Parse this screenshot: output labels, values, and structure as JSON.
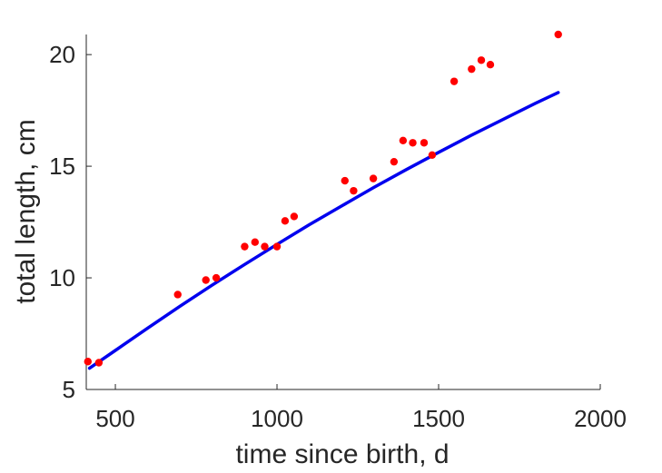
{
  "chart_data": {
    "type": "scatter",
    "xlabel": "time since birth, d",
    "ylabel": "total length, cm",
    "xlim": [
      410,
      2000
    ],
    "ylim": [
      5,
      20.9
    ],
    "xticks": [
      500,
      1000,
      1500,
      2000
    ],
    "yticks": [
      5,
      10,
      15,
      20
    ],
    "grid": false,
    "series": [
      {
        "kind": "points",
        "color": "#ff0000",
        "points": [
          [
            415,
            6.25
          ],
          [
            449,
            6.2
          ],
          [
            693,
            9.25
          ],
          [
            780,
            9.9
          ],
          [
            812,
            10.0
          ],
          [
            900,
            11.4
          ],
          [
            932,
            11.6
          ],
          [
            962,
            11.4
          ],
          [
            1000,
            11.4
          ],
          [
            1025,
            12.55
          ],
          [
            1053,
            12.75
          ],
          [
            1210,
            14.35
          ],
          [
            1237,
            13.9
          ],
          [
            1298,
            14.45
          ],
          [
            1362,
            15.2
          ],
          [
            1390,
            16.15
          ],
          [
            1420,
            16.05
          ],
          [
            1455,
            16.05
          ],
          [
            1480,
            15.5
          ],
          [
            1548,
            18.8
          ],
          [
            1602,
            19.35
          ],
          [
            1632,
            19.75
          ],
          [
            1660,
            19.55
          ],
          [
            1870,
            20.9
          ]
        ]
      },
      {
        "kind": "fit-line",
        "color": "#0000ee",
        "points": [
          [
            420,
            5.95
          ],
          [
            500,
            6.75
          ],
          [
            600,
            7.75
          ],
          [
            700,
            8.73
          ],
          [
            800,
            9.68
          ],
          [
            900,
            10.6
          ],
          [
            1000,
            11.5
          ],
          [
            1100,
            12.38
          ],
          [
            1200,
            13.22
          ],
          [
            1300,
            14.05
          ],
          [
            1400,
            14.85
          ],
          [
            1500,
            15.62
          ],
          [
            1600,
            16.38
          ],
          [
            1700,
            17.1
          ],
          [
            1800,
            17.82
          ],
          [
            1870,
            18.3
          ]
        ]
      }
    ]
  }
}
